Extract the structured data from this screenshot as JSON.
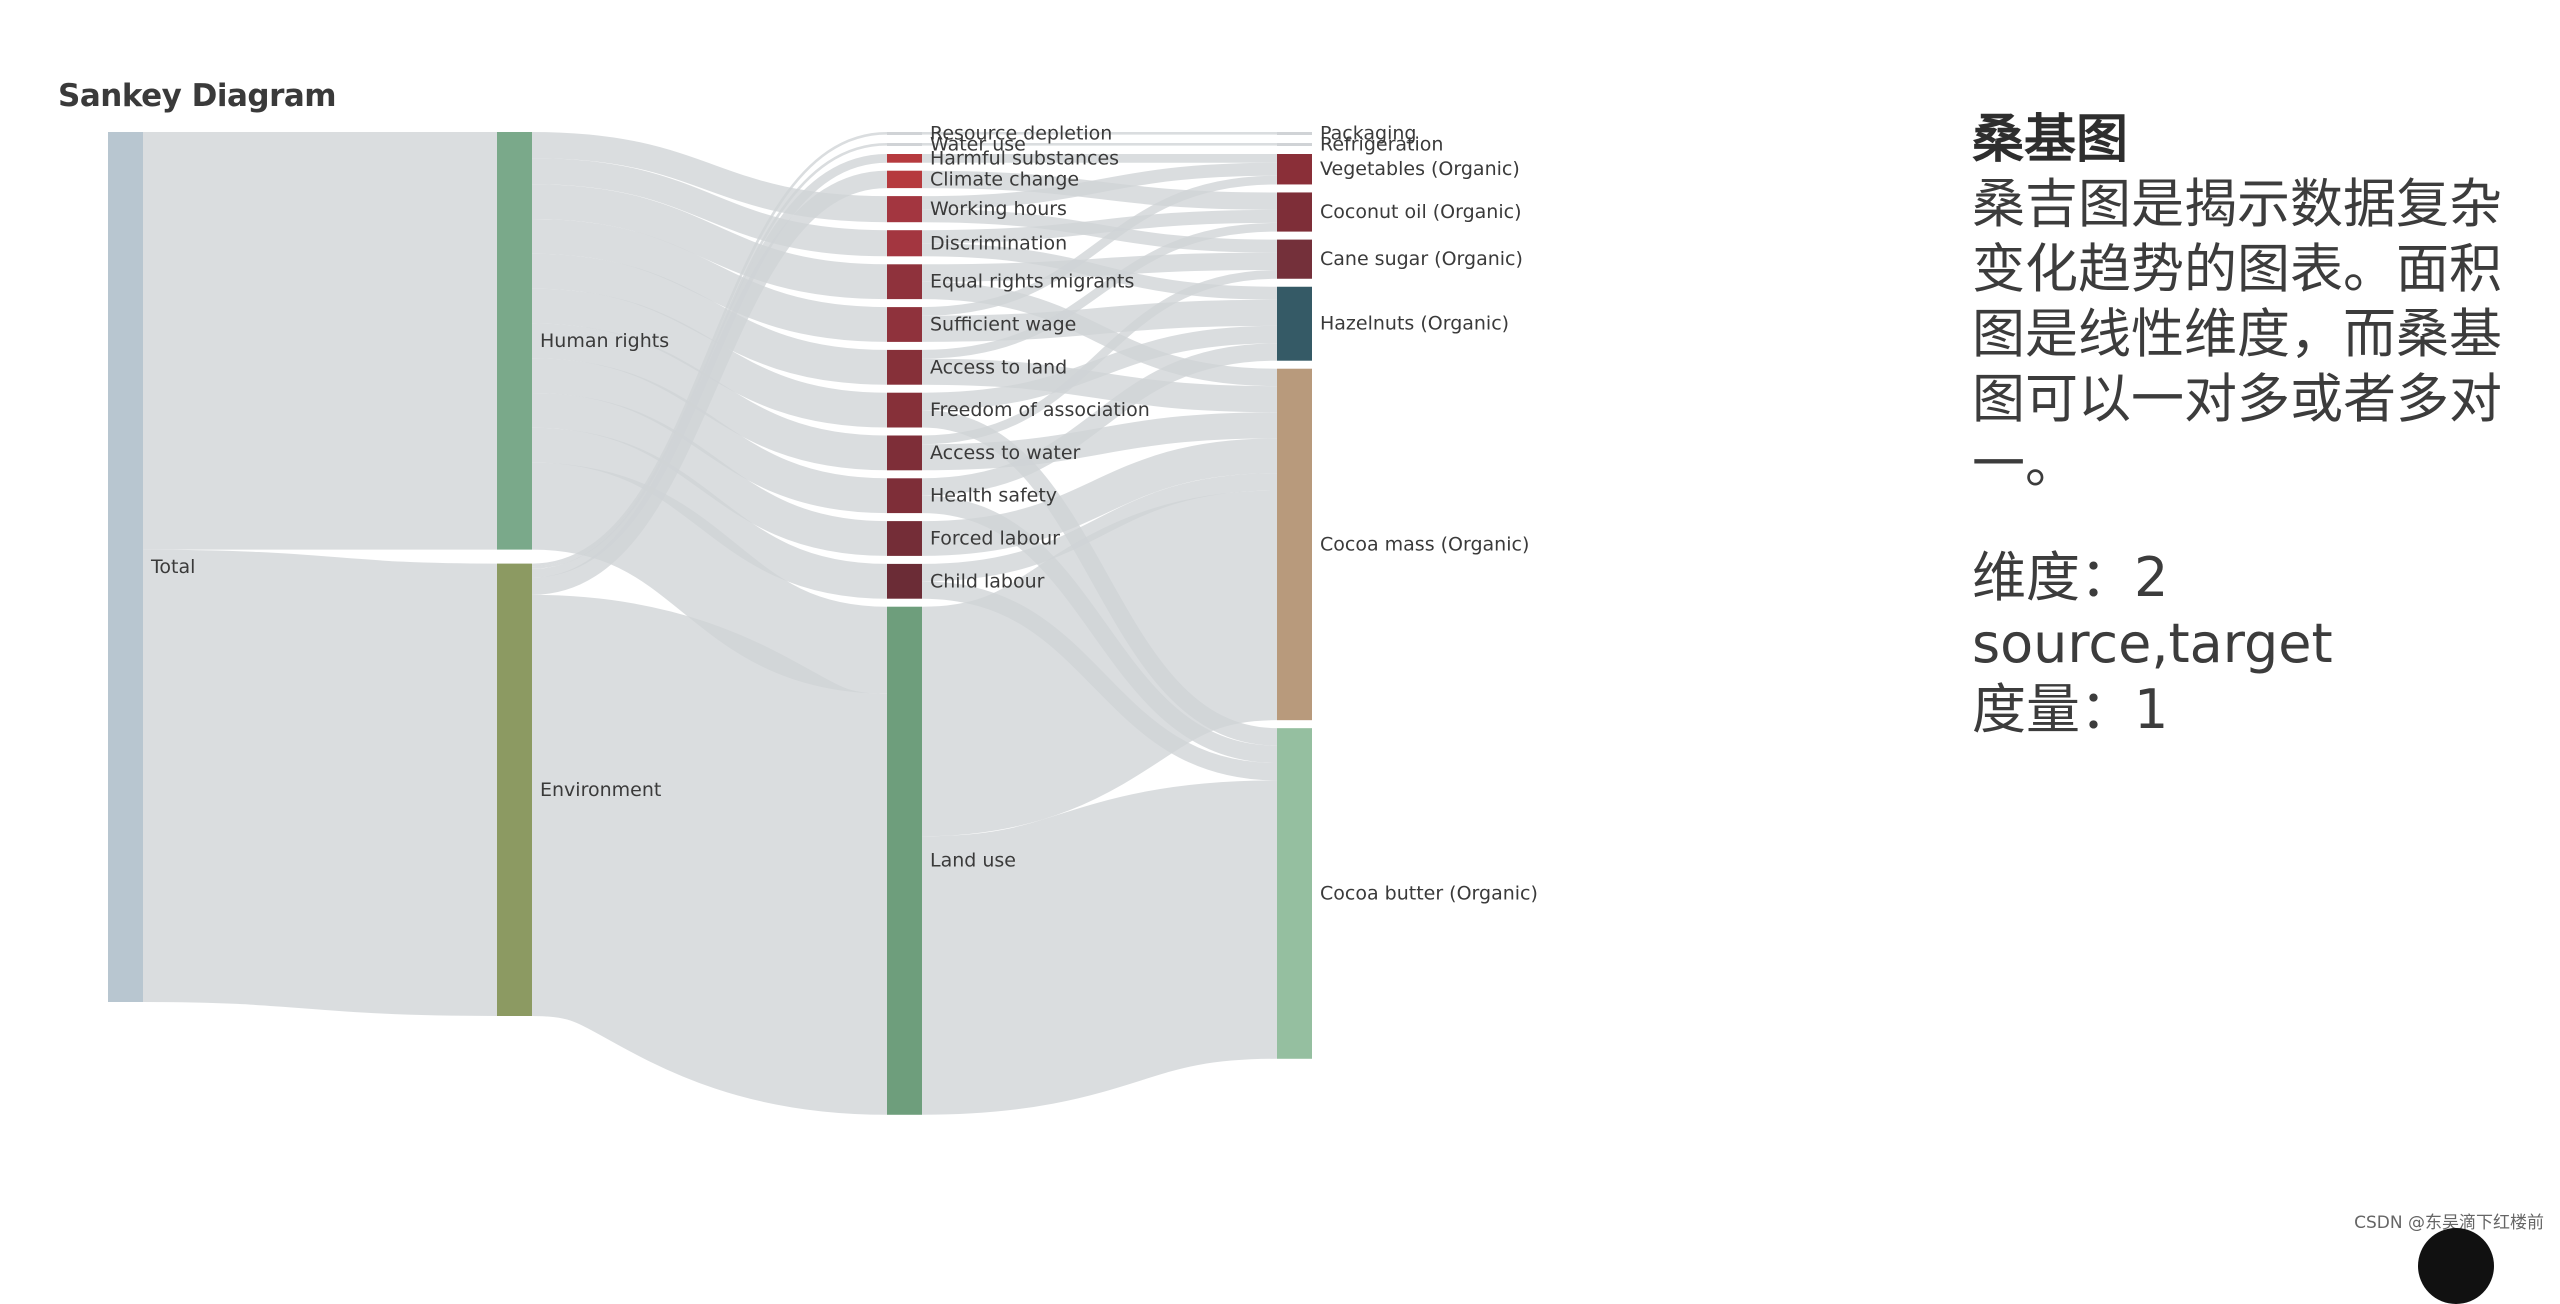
{
  "title": "Sankey Diagram",
  "side_panel": {
    "heading": "桑基图",
    "description": "桑吉图是揭示数据复杂变化趋势的图表。面积图是线性维度，而桑基图可以一对多或者多对一。",
    "dimensions": "维度：2 source,target",
    "measures": "度量：1"
  },
  "watermark": "CSDN @东吴滴下红楼前",
  "colors": {
    "link": "#cfd3d6",
    "total": "#b8c6d0",
    "human_rights": "#7aa98a",
    "environment": "#8c9a62",
    "land_use": "#6e9e7c",
    "red": "#b63a3e",
    "dark_red": "#7e2e38",
    "darker_red": "#6b2c36",
    "hazelnuts": "#355a66",
    "cocoa_mass": "#b89a7c",
    "cocoa_butter": "#95bfa0",
    "tiny": "#d0d3d6"
  },
  "chart_data": {
    "type": "sankey",
    "title": "Sankey Diagram",
    "nodes": [
      {
        "id": "total",
        "name": "Total",
        "column": 0,
        "color": "#b8c6d0"
      },
      {
        "id": "hr",
        "name": "Human rights",
        "column": 1,
        "color": "#7aa98a"
      },
      {
        "id": "env",
        "name": "Environment",
        "column": 1,
        "color": "#8c9a62"
      },
      {
        "id": "rd",
        "name": "Resource depletion",
        "column": 2,
        "color": "#d0d3d6"
      },
      {
        "id": "wu",
        "name": "Water use",
        "column": 2,
        "color": "#d0d3d6"
      },
      {
        "id": "hs",
        "name": "Harmful substances",
        "column": 2,
        "color": "#b63a3e"
      },
      {
        "id": "cc",
        "name": "Climate change",
        "column": 2,
        "color": "#b63a3e"
      },
      {
        "id": "wh",
        "name": "Working hours",
        "column": 2,
        "color": "#a33640"
      },
      {
        "id": "dis",
        "name": "Discrimination",
        "column": 2,
        "color": "#a33640"
      },
      {
        "id": "erm",
        "name": "Equal rights migrants",
        "column": 2,
        "color": "#8f323c"
      },
      {
        "id": "sw",
        "name": "Sufficient wage",
        "column": 2,
        "color": "#8f323c"
      },
      {
        "id": "atl",
        "name": "Access to land",
        "column": 2,
        "color": "#863039"
      },
      {
        "id": "foa",
        "name": "Freedom of association",
        "column": 2,
        "color": "#863039"
      },
      {
        "id": "atw",
        "name": "Access to water",
        "column": 2,
        "color": "#7e2e38"
      },
      {
        "id": "hsf",
        "name": "Health safety",
        "column": 2,
        "color": "#7e2e38"
      },
      {
        "id": "fl",
        "name": "Forced labour",
        "column": 2,
        "color": "#742d37"
      },
      {
        "id": "cl",
        "name": "Child labour",
        "column": 2,
        "color": "#6b2c36"
      },
      {
        "id": "lu",
        "name": "Land use",
        "column": 2,
        "color": "#6e9e7c"
      },
      {
        "id": "pkg",
        "name": "Packaging",
        "column": 3,
        "color": "#d0d3d6"
      },
      {
        "id": "ref",
        "name": "Refrigeration",
        "column": 3,
        "color": "#d0d3d6"
      },
      {
        "id": "veg",
        "name": "Vegetables (Organic)",
        "column": 3,
        "color": "#8a2f38"
      },
      {
        "id": "coco",
        "name": "Coconut oil (Organic)",
        "column": 3,
        "color": "#7e2e38"
      },
      {
        "id": "cane",
        "name": "Cane sugar (Organic)",
        "column": 3,
        "color": "#74303a"
      },
      {
        "id": "haz",
        "name": "Hazelnuts (Organic)",
        "column": 3,
        "color": "#355a66"
      },
      {
        "id": "cmass",
        "name": "Cocoa mass (Organic)",
        "column": 3,
        "color": "#b89a7c"
      },
      {
        "id": "cbut",
        "name": "Cocoa butter (Organic)",
        "column": 3,
        "color": "#95bfa0"
      }
    ],
    "links": [
      {
        "source": "total",
        "target": "hr",
        "value": 48
      },
      {
        "source": "total",
        "target": "env",
        "value": 52
      },
      {
        "source": "hr",
        "target": "wh",
        "value": 3
      },
      {
        "source": "hr",
        "target": "dis",
        "value": 3
      },
      {
        "source": "hr",
        "target": "erm",
        "value": 4
      },
      {
        "source": "hr",
        "target": "sw",
        "value": 4
      },
      {
        "source": "hr",
        "target": "atl",
        "value": 4
      },
      {
        "source": "hr",
        "target": "foa",
        "value": 4
      },
      {
        "source": "hr",
        "target": "atw",
        "value": 4
      },
      {
        "source": "hr",
        "target": "hsf",
        "value": 4
      },
      {
        "source": "hr",
        "target": "fl",
        "value": 4
      },
      {
        "source": "hr",
        "target": "cl",
        "value": 4
      },
      {
        "source": "hr",
        "target": "lu",
        "value": 10
      },
      {
        "source": "env",
        "target": "rd",
        "value": 0.3
      },
      {
        "source": "env",
        "target": "wu",
        "value": 0.3
      },
      {
        "source": "env",
        "target": "hs",
        "value": 1
      },
      {
        "source": "env",
        "target": "cc",
        "value": 2
      },
      {
        "source": "env",
        "target": "lu",
        "value": 48.4
      },
      {
        "source": "rd",
        "target": "pkg",
        "value": 0.3
      },
      {
        "source": "wu",
        "target": "ref",
        "value": 0.3
      },
      {
        "source": "hs",
        "target": "veg",
        "value": 1
      },
      {
        "source": "cc",
        "target": "coco",
        "value": 2
      },
      {
        "source": "wh",
        "target": "veg",
        "value": 1.5
      },
      {
        "source": "wh",
        "target": "cane",
        "value": 1.5
      },
      {
        "source": "dis",
        "target": "coco",
        "value": 1.5
      },
      {
        "source": "dis",
        "target": "haz",
        "value": 1.5
      },
      {
        "source": "erm",
        "target": "cane",
        "value": 2
      },
      {
        "source": "erm",
        "target": "cmass",
        "value": 2
      },
      {
        "source": "sw",
        "target": "veg",
        "value": 1
      },
      {
        "source": "sw",
        "target": "haz",
        "value": 3
      },
      {
        "source": "atl",
        "target": "coco",
        "value": 1
      },
      {
        "source": "atl",
        "target": "cmass",
        "value": 3
      },
      {
        "source": "foa",
        "target": "haz",
        "value": 2
      },
      {
        "source": "foa",
        "target": "cbut",
        "value": 2
      },
      {
        "source": "atw",
        "target": "cane",
        "value": 1
      },
      {
        "source": "atw",
        "target": "cmass",
        "value": 3
      },
      {
        "source": "hsf",
        "target": "haz",
        "value": 2
      },
      {
        "source": "hsf",
        "target": "cbut",
        "value": 2
      },
      {
        "source": "fl",
        "target": "cmass",
        "value": 4
      },
      {
        "source": "cl",
        "target": "cmass",
        "value": 2
      },
      {
        "source": "cl",
        "target": "cbut",
        "value": 2
      },
      {
        "source": "lu",
        "target": "cmass",
        "value": 26.4
      },
      {
        "source": "lu",
        "target": "cbut",
        "value": 32
      }
    ]
  }
}
